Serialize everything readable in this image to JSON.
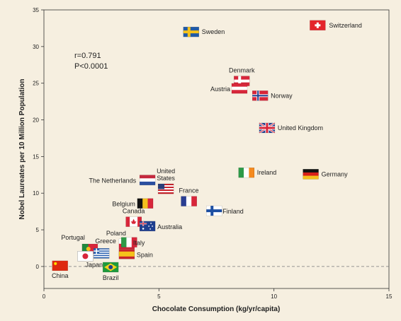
{
  "chart_data": {
    "type": "scatter",
    "xlabel": "Chocolate Consumption (kg/yr/capita)",
    "ylabel": "Nobel Laureates per 10 Million Population",
    "xlim": [
      0,
      15
    ],
    "ylim": [
      -3,
      35
    ],
    "xticks": [
      "0",
      "5",
      "10",
      "15"
    ],
    "yticks": [
      "0",
      "5",
      "10",
      "15",
      "20",
      "25",
      "30",
      "35"
    ],
    "annotation": {
      "r": "r=0.791",
      "p": "P<0.0001"
    },
    "zero_line": "dashed",
    "points": [
      {
        "country": "Switzerland",
        "x": 11.9,
        "y": 32.9,
        "flag": "switzerland"
      },
      {
        "country": "Sweden",
        "x": 6.4,
        "y": 32.0,
        "flag": "sweden"
      },
      {
        "country": "Denmark",
        "x": 8.6,
        "y": 25.3,
        "flag": "denmark"
      },
      {
        "country": "Austria",
        "x": 8.5,
        "y": 24.3,
        "flag": "austria"
      },
      {
        "country": "Norway",
        "x": 9.4,
        "y": 23.3,
        "flag": "norway"
      },
      {
        "country": "United Kingdom",
        "x": 9.7,
        "y": 18.9,
        "flag": "uk"
      },
      {
        "country": "Ireland",
        "x": 8.8,
        "y": 12.8,
        "flag": "ireland"
      },
      {
        "country": "Germany",
        "x": 11.6,
        "y": 12.6,
        "flag": "germany"
      },
      {
        "country": "The Netherlands",
        "x": 4.5,
        "y": 11.8,
        "flag": "netherlands"
      },
      {
        "country": "United States",
        "x": 5.3,
        "y": 10.6,
        "flag": "usa"
      },
      {
        "country": "France",
        "x": 6.3,
        "y": 8.9,
        "flag": "france"
      },
      {
        "country": "Belgium",
        "x": 4.4,
        "y": 8.6,
        "flag": "belgium"
      },
      {
        "country": "Finland",
        "x": 7.4,
        "y": 7.6,
        "flag": "finland"
      },
      {
        "country": "Canada",
        "x": 3.9,
        "y": 6.1,
        "flag": "canada"
      },
      {
        "country": "Australia",
        "x": 4.5,
        "y": 5.5,
        "flag": "australia"
      },
      {
        "country": "Poland",
        "x": 3.6,
        "y": 3.1,
        "flag": "poland"
      },
      {
        "country": "Italy",
        "x": 3.7,
        "y": 3.3,
        "flag": "italy"
      },
      {
        "country": "Portugal",
        "x": 2.0,
        "y": 2.4,
        "flag": "portugal"
      },
      {
        "country": "Greece",
        "x": 2.5,
        "y": 1.8,
        "flag": "greece"
      },
      {
        "country": "Spain",
        "x": 3.6,
        "y": 1.7,
        "flag": "spain"
      },
      {
        "country": "Japan",
        "x": 1.8,
        "y": 1.4,
        "flag": "japan"
      },
      {
        "country": "China",
        "x": 0.7,
        "y": 0.1,
        "flag": "china"
      },
      {
        "country": "Brazil",
        "x": 2.9,
        "y": -0.1,
        "flag": "brazil"
      }
    ]
  }
}
